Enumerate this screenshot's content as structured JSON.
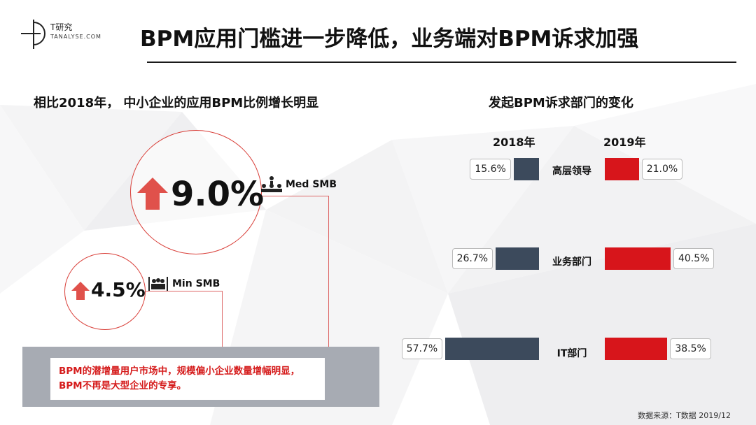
{
  "header": {
    "logo_cn": "T研究",
    "logo_en": "TANALYSE.COM",
    "title": "BPM应用门槛进一步降低，业务端对BPM诉求加强"
  },
  "left": {
    "subtitle": "相比2018年， 中小企业的应用BPM比例增长明显",
    "med": {
      "value": "9.0%",
      "label": "Med SMB",
      "icon": "people-meeting-icon"
    },
    "min": {
      "value": "4.5%",
      "label": "Min SMB",
      "icon": "people-group-icon"
    },
    "callout": [
      "BPM的潜增量用户市场中，规模偏小企业数量增幅明显，",
      "BPM不再是大型企业的专享。"
    ]
  },
  "chart_data": {
    "type": "bar",
    "title": "发起BPM诉求部门的变化",
    "categories": [
      "高层领导",
      "业务部门",
      "IT部门"
    ],
    "series": [
      {
        "name": "2018年",
        "values": [
          15.6,
          26.7,
          57.7
        ],
        "labels": [
          "15.6%",
          "26.7%",
          "57.7%"
        ],
        "color": "#3c4a5c"
      },
      {
        "name": "2019年",
        "values": [
          21.0,
          40.5,
          38.5
        ],
        "labels": [
          "21.0%",
          "40.5%",
          "38.5%"
        ],
        "color": "#d7151b"
      }
    ]
  },
  "colors": {
    "accent_red": "#d7151b",
    "navy": "#3c4a5c",
    "arrow_red": "#e0514b"
  },
  "footer": {
    "source": "数据来源：T数据 2019/12"
  }
}
